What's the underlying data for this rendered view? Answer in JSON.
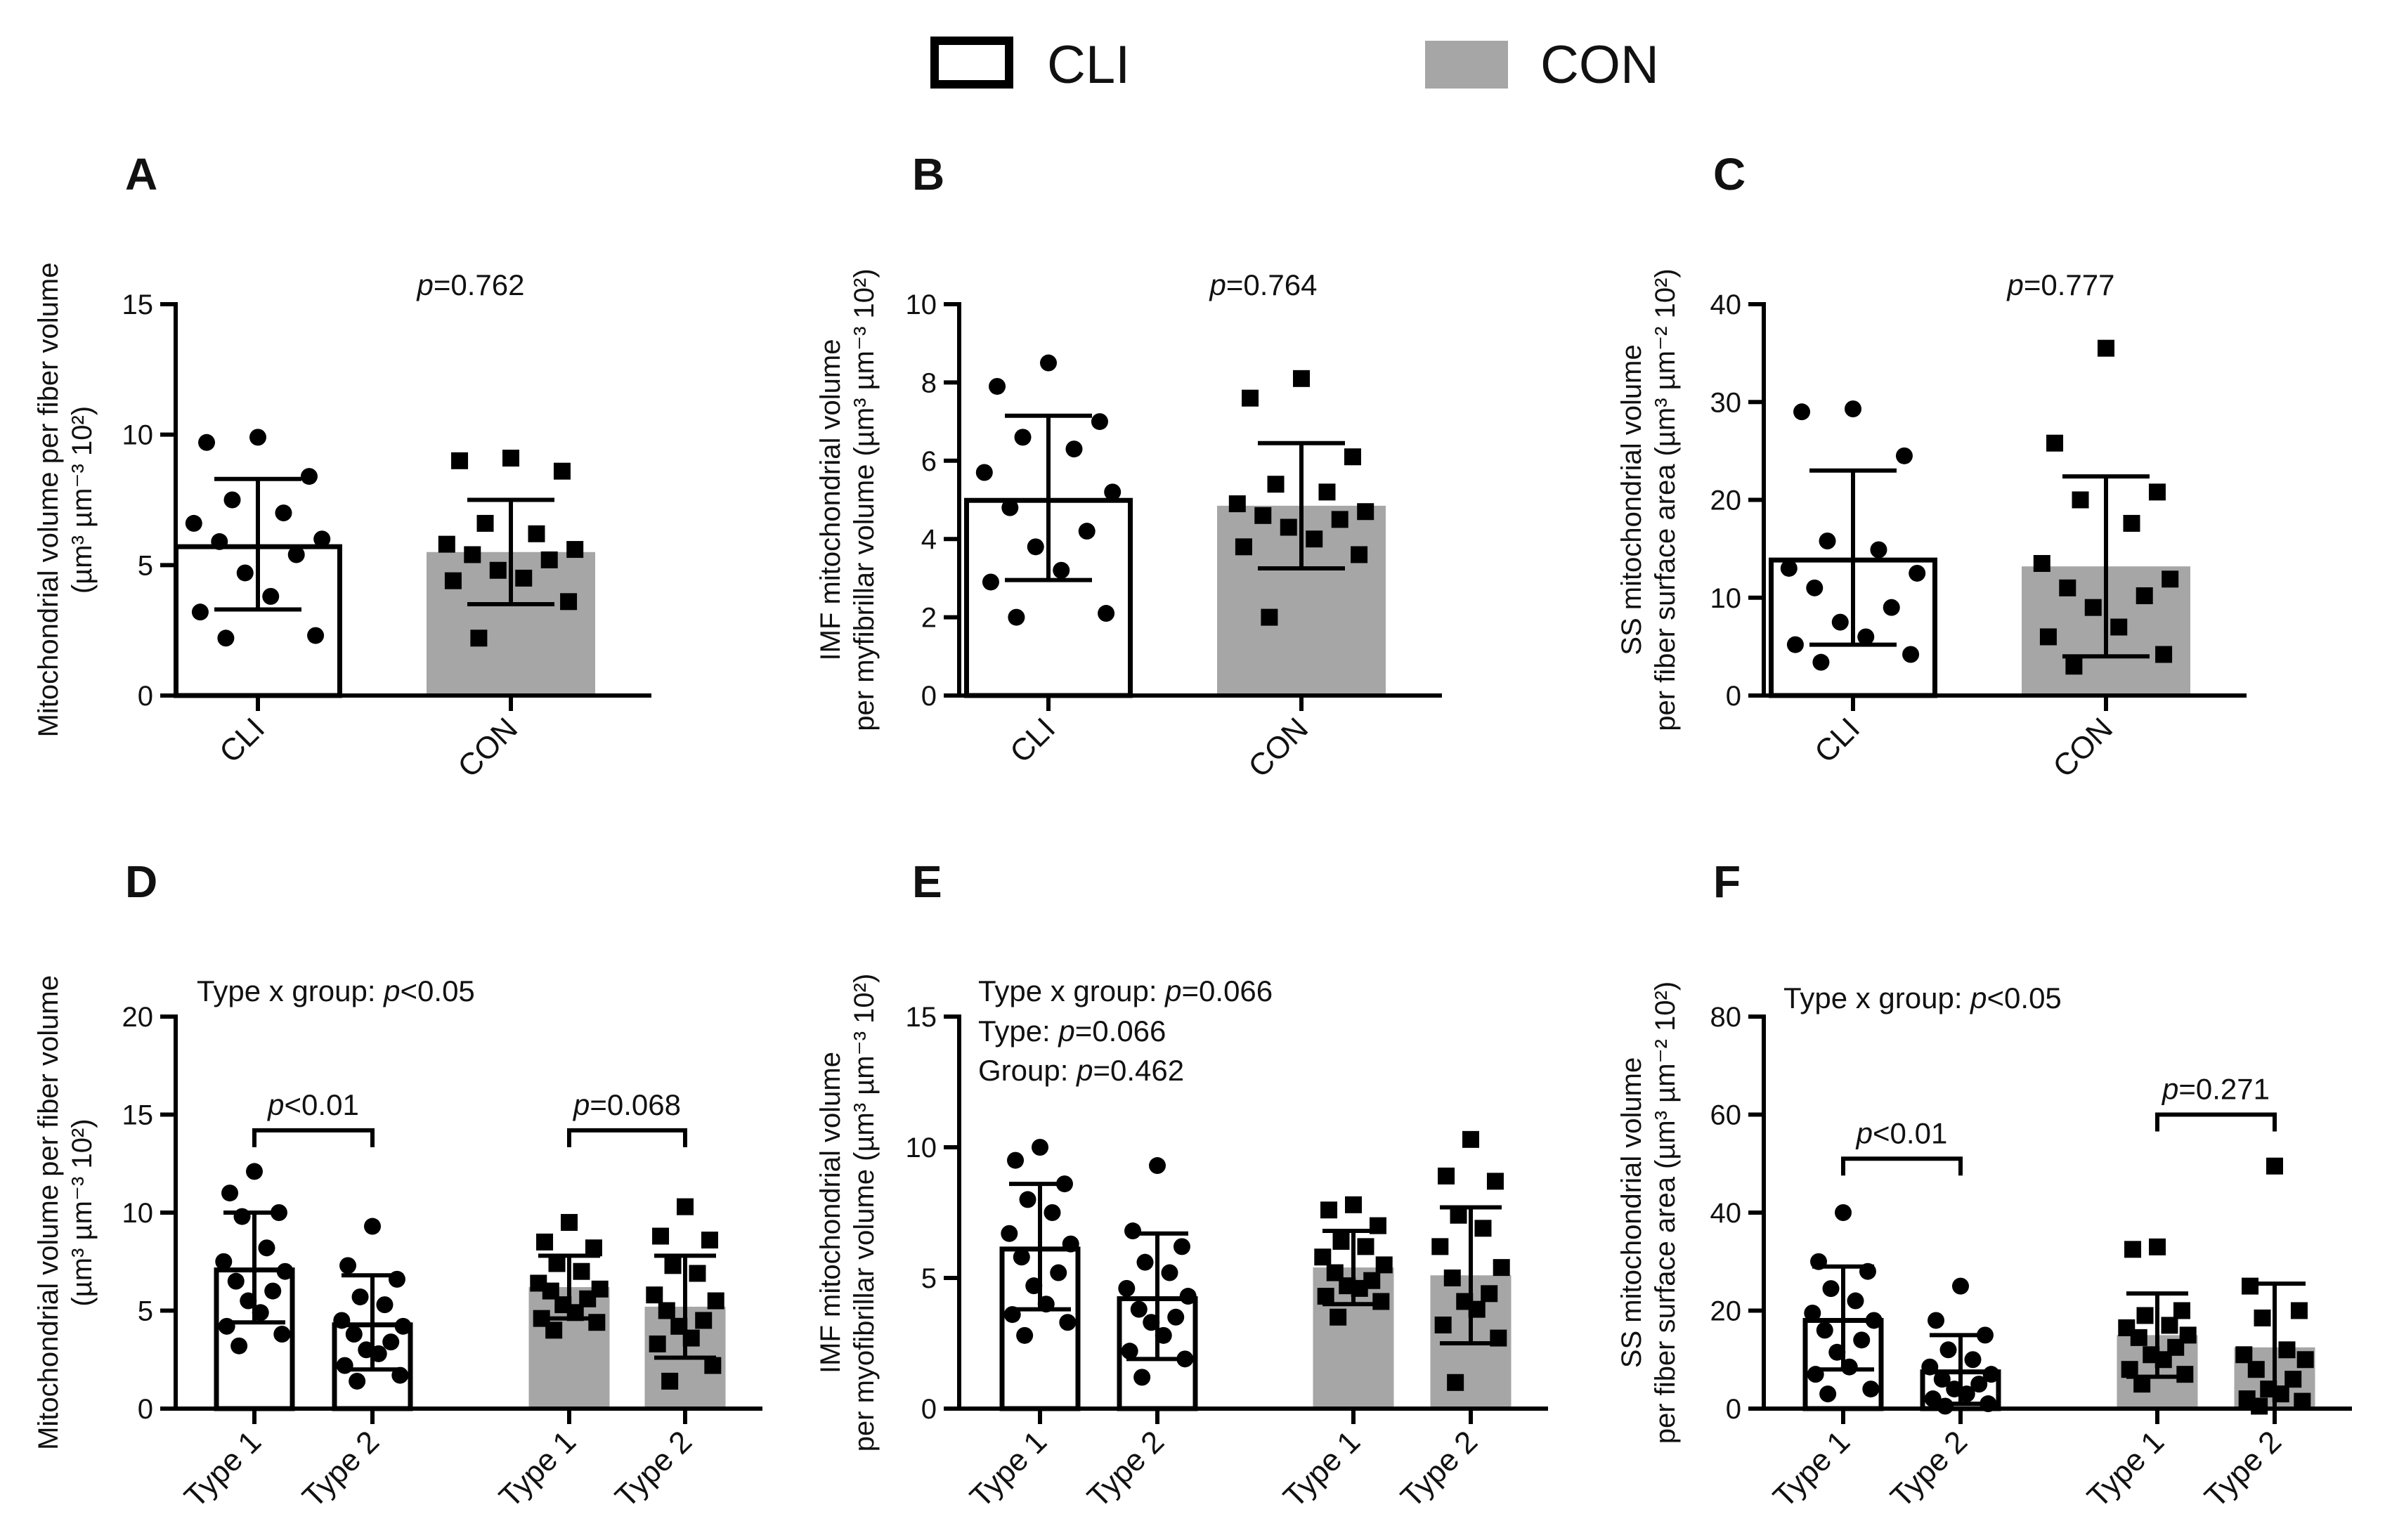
{
  "legend": {
    "items": [
      {
        "label": "CLI",
        "fill": "#ffffff",
        "stroke": "#000000"
      },
      {
        "label": "CON",
        "fill": "#a6a6a6",
        "stroke": "#a6a6a6"
      }
    ]
  },
  "chart_data": [
    {
      "panel": "A",
      "type": "bar",
      "ylabel_lines": [
        "Mitochondrial volume per fiber volume",
        "(µm³  µm⁻³ 10²)"
      ],
      "ylim": [
        0,
        15
      ],
      "yticks": [
        0,
        5,
        10,
        15
      ],
      "categories": [
        "CLI",
        "CON"
      ],
      "groups": [
        "CLI",
        "CON"
      ],
      "means": [
        5.8,
        5.5
      ],
      "sd": [
        2.5,
        2.0
      ],
      "points": [
        [
          9.9,
          9.7,
          8.4,
          7.5,
          7.0,
          6.6,
          6.0,
          5.9,
          5.4,
          4.7,
          3.8,
          3.2,
          2.3,
          2.2
        ],
        [
          9.1,
          9.0,
          8.6,
          6.6,
          6.2,
          5.8,
          5.6,
          5.4,
          5.2,
          4.8,
          4.5,
          4.4,
          3.6,
          2.2
        ]
      ],
      "markers": [
        "circle",
        "square"
      ],
      "annotations": [
        {
          "text": "p=0.762",
          "position": "top-center"
        }
      ],
      "brackets": []
    },
    {
      "panel": "B",
      "type": "bar",
      "ylabel_lines": [
        "IMF mitochondrial volume",
        "per myfibrillar volume (µm³  µm⁻³ 10²)"
      ],
      "ylim": [
        0,
        10
      ],
      "yticks": [
        0,
        2,
        4,
        6,
        8,
        10
      ],
      "categories": [
        "CLI",
        "CON"
      ],
      "groups": [
        "CLI",
        "CON"
      ],
      "means": [
        5.05,
        4.85
      ],
      "sd": [
        2.1,
        1.6
      ],
      "points": [
        [
          8.5,
          7.9,
          7.0,
          6.6,
          6.3,
          5.7,
          5.2,
          4.8,
          4.2,
          3.8,
          3.2,
          2.9,
          2.1,
          2.0
        ],
        [
          8.1,
          7.6,
          6.1,
          5.4,
          5.2,
          4.9,
          4.7,
          4.6,
          4.5,
          4.3,
          4.0,
          3.8,
          3.6,
          2.0
        ]
      ],
      "markers": [
        "circle",
        "square"
      ],
      "annotations": [
        {
          "text": "p=0.764",
          "position": "top-center"
        }
      ],
      "brackets": []
    },
    {
      "panel": "C",
      "type": "bar",
      "ylabel_lines": [
        "SS mitochondrial volume",
        "per fiber surface area (µm³  µm⁻² 10²)"
      ],
      "ylim": [
        0,
        40
      ],
      "yticks": [
        0,
        10,
        20,
        30,
        40
      ],
      "categories": [
        "CLI",
        "CON"
      ],
      "groups": [
        "CLI",
        "CON"
      ],
      "means": [
        14.1,
        13.2
      ],
      "sd": [
        8.9,
        9.2
      ],
      "points": [
        [
          29.3,
          29.0,
          24.5,
          15.8,
          14.9,
          13.0,
          12.5,
          11.0,
          9.0,
          7.5,
          6.0,
          5.2,
          4.2,
          3.4
        ],
        [
          35.5,
          25.8,
          20.8,
          20.0,
          17.6,
          13.5,
          11.9,
          11.0,
          10.2,
          9.0,
          7.0,
          6.0,
          4.2,
          3.0
        ]
      ],
      "markers": [
        "circle",
        "square"
      ],
      "annotations": [
        {
          "text": "p=0.777",
          "position": "top-center"
        }
      ],
      "brackets": []
    },
    {
      "panel": "D",
      "type": "bar",
      "ylabel_lines": [
        "Mitochondrial volume per fiber volume",
        "(µm³  µm⁻³ 10²)"
      ],
      "ylim": [
        0,
        20
      ],
      "yticks": [
        0,
        5,
        10,
        15,
        20
      ],
      "categories": [
        "Type 1",
        "Type 2",
        "Type 1",
        "Type 2"
      ],
      "groups": [
        "CLI",
        "CLI",
        "CON",
        "CON"
      ],
      "means": [
        7.2,
        4.4,
        6.2,
        5.2
      ],
      "sd": [
        2.8,
        2.4,
        1.6,
        2.6
      ],
      "points": [
        [
          12.1,
          11.0,
          10.0,
          9.8,
          8.2,
          7.5,
          7.0,
          6.5,
          6.0,
          5.5,
          4.9,
          4.2,
          3.8,
          3.2
        ],
        [
          9.3,
          7.3,
          6.6,
          5.7,
          5.3,
          4.5,
          4.2,
          3.8,
          3.4,
          3.0,
          2.8,
          2.2,
          1.7,
          1.4
        ],
        [
          9.5,
          8.5,
          8.2,
          7.4,
          7.0,
          6.4,
          6.1,
          6.0,
          5.6,
          5.3,
          4.9,
          4.6,
          4.4,
          4.0
        ],
        [
          10.3,
          8.8,
          8.6,
          7.3,
          6.9,
          5.8,
          5.5,
          5.0,
          4.5,
          4.2,
          3.6,
          3.3,
          2.2,
          1.4
        ]
      ],
      "markers": [
        "circle",
        "circle",
        "square",
        "square"
      ],
      "annotations": [
        {
          "text": "Type x group: p<0.05",
          "position": "top-left"
        }
      ],
      "brackets": [
        {
          "from": 0,
          "to": 1,
          "text": "p<0.01",
          "y": 14.2
        },
        {
          "from": 2,
          "to": 3,
          "text": "p=0.068",
          "y": 14.2
        }
      ]
    },
    {
      "panel": "E",
      "type": "bar",
      "ylabel_lines": [
        "IMF mitochondrial volume",
        "per myofibrillar volume (µm³  µm⁻³ 10²)"
      ],
      "ylim": [
        0,
        15
      ],
      "yticks": [
        0,
        5,
        10,
        15
      ],
      "categories": [
        "Type 1",
        "Type 2",
        "Type 1",
        "Type 2"
      ],
      "groups": [
        "CLI",
        "CLI",
        "CON",
        "CON"
      ],
      "means": [
        6.2,
        4.3,
        5.4,
        5.1
      ],
      "sd": [
        2.4,
        2.4,
        1.4,
        2.6
      ],
      "points": [
        [
          10.0,
          9.5,
          8.6,
          8.0,
          7.5,
          6.7,
          6.3,
          5.8,
          5.2,
          4.7,
          4.0,
          3.6,
          3.3,
          2.8
        ],
        [
          9.3,
          6.8,
          6.2,
          5.6,
          5.2,
          4.6,
          4.3,
          3.8,
          3.5,
          3.3,
          2.8,
          2.2,
          1.9,
          1.2
        ],
        [
          7.8,
          7.6,
          7.0,
          6.4,
          6.2,
          5.8,
          5.5,
          5.2,
          4.9,
          4.7,
          4.6,
          4.3,
          4.1,
          3.5
        ],
        [
          10.3,
          8.9,
          8.7,
          7.4,
          6.9,
          6.2,
          5.4,
          5.0,
          4.4,
          4.1,
          3.8,
          3.2,
          2.7,
          1.0
        ]
      ],
      "markers": [
        "circle",
        "circle",
        "square",
        "square"
      ],
      "annotations": [
        {
          "text": "Type x group: p=0.066",
          "position": "top-left"
        },
        {
          "text": "Type: p=0.066",
          "position": "top-left"
        },
        {
          "text": "Group: p=0.462",
          "position": "top-left"
        }
      ],
      "brackets": []
    },
    {
      "panel": "F",
      "type": "bar",
      "ylabel_lines": [
        "SS mitochondrial volume",
        "per fiber surface area (µm³  µm⁻² 10²)"
      ],
      "ylim": [
        0,
        80
      ],
      "yticks": [
        0,
        20,
        40,
        60,
        80
      ],
      "categories": [
        "Type 1",
        "Type 2",
        "Type 1",
        "Type 2"
      ],
      "groups": [
        "CLI",
        "CLI",
        "CON",
        "CON"
      ],
      "means": [
        18.5,
        8.0,
        15.0,
        12.5
      ],
      "sd": [
        10.5,
        7.0,
        8.5,
        13.0
      ],
      "points": [
        [
          40.0,
          30.0,
          28.0,
          24.5,
          22.0,
          19.5,
          18.0,
          16.0,
          14.0,
          11.5,
          8.5,
          7.0,
          4.0,
          3.0
        ],
        [
          25.0,
          18.0,
          15.0,
          12.0,
          10.0,
          8.5,
          7.0,
          6.0,
          5.0,
          4.0,
          3.0,
          2.0,
          1.0,
          0.5
        ],
        [
          33.0,
          32.5,
          20.0,
          19.0,
          17.0,
          16.5,
          15.0,
          14.5,
          12.5,
          11.0,
          10.0,
          8.0,
          7.0,
          5.0
        ],
        [
          49.5,
          25.0,
          20.0,
          18.5,
          12.0,
          11.0,
          10.0,
          8.0,
          6.0,
          4.0,
          3.0,
          2.0,
          1.5,
          0.5
        ]
      ],
      "markers": [
        "circle",
        "circle",
        "square",
        "square"
      ],
      "annotations": [
        {
          "text": "Type x group: p<0.05",
          "position": "top-left"
        }
      ],
      "brackets": [
        {
          "from": 0,
          "to": 1,
          "text": "p<0.01",
          "y": 51
        },
        {
          "from": 2,
          "to": 3,
          "text": "p=0.271",
          "y": 60
        }
      ]
    }
  ]
}
